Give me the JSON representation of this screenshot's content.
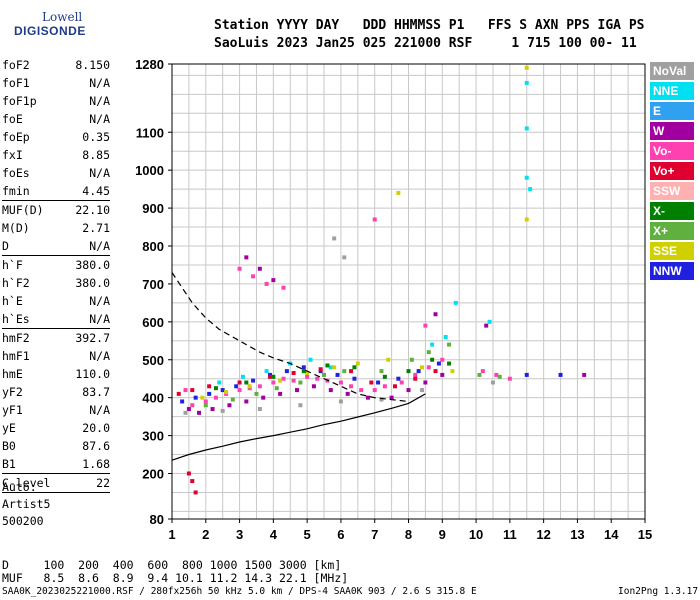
{
  "logo": {
    "line1": "Lowell",
    "line2": "DIGISONDE"
  },
  "header": {
    "row1": "Station YYYY DAY   DDD HHMMSS P1   FFS S AXN PPS IGA PS",
    "row2": "SaoLuis 2023 Jan25 025 221000 RSF     1 715 100 00- 11"
  },
  "params": [
    {
      "label": "foF2",
      "value": "8.150"
    },
    {
      "label": "foF1",
      "value": "N/A"
    },
    {
      "label": "foF1p",
      "value": "N/A"
    },
    {
      "label": "foE",
      "value": "N/A"
    },
    {
      "label": "foEp",
      "value": "0.35"
    },
    {
      "label": "fxI",
      "value": "8.85"
    },
    {
      "label": "foEs",
      "value": "N/A"
    },
    {
      "label": "fmin",
      "value": "4.45",
      "sep_after": true
    },
    {
      "label": "MUF(D)",
      "value": "22.10"
    },
    {
      "label": "M(D)",
      "value": "2.71"
    },
    {
      "label": "D",
      "value": "N/A",
      "sep_after": true
    },
    {
      "label": "h`F",
      "value": "380.0"
    },
    {
      "label": "h`F2",
      "value": "380.0"
    },
    {
      "label": "h`E",
      "value": "N/A"
    },
    {
      "label": "h`Es",
      "value": "N/A",
      "sep_after": true
    },
    {
      "label": "hmF2",
      "value": "392.7"
    },
    {
      "label": "hmF1",
      "value": "N/A"
    },
    {
      "label": "hmE",
      "value": "110.0"
    },
    {
      "label": "yF2",
      "value": "83.7"
    },
    {
      "label": "yF1",
      "value": "N/A"
    },
    {
      "label": "yE",
      "value": "20.0"
    },
    {
      "label": "B0",
      "value": "87.6"
    },
    {
      "label": "B1",
      "value": "1.68",
      "sep_after": true
    },
    {
      "label": "C-level",
      "value": "22",
      "sep_after": true
    }
  ],
  "auto": {
    "line1": "Auto:",
    "line2": "Artist5",
    "line3": "500200"
  },
  "legend": [
    {
      "label": "NoVal",
      "color": "#a0a0a0"
    },
    {
      "label": "NNE",
      "color": "#00e0f0"
    },
    {
      "label": "E",
      "color": "#30a0f0"
    },
    {
      "label": "W",
      "color": "#a000a0"
    },
    {
      "label": "Vo-",
      "color": "#ff40b0"
    },
    {
      "label": "Vo+",
      "color": "#e00030"
    },
    {
      "label": "SSW",
      "color": "#ffb0b0"
    },
    {
      "label": "X-",
      "color": "#008000"
    },
    {
      "label": "X+",
      "color": "#60b040"
    },
    {
      "label": "SSE",
      "color": "#d0d000"
    },
    {
      "label": "NNW",
      "color": "#2020e0"
    }
  ],
  "bottom": {
    "d_row": "D     100  200  400  600  800 1000 1500 3000 [km]",
    "muf_row": "MUF   8.5  8.6  8.9  9.4 10.1 11.2 14.3 22.1 [MHz]"
  },
  "footer": {
    "left": "SAA0K_2023025221000.RSF / 280fx256h 50 kHz 5.0 km / DPS-4 SAA0K 903 / 2.6 S 315.8 E",
    "right": "Ion2Png 1.3.17"
  },
  "chart_data": {
    "type": "scatter",
    "title": "",
    "xlabel": "",
    "ylabel": "",
    "x_ticks": [
      1,
      2,
      3,
      4,
      5,
      6,
      7,
      8,
      9,
      10,
      11,
      12,
      13,
      14,
      15
    ],
    "y_ticks": [
      80,
      200,
      300,
      400,
      500,
      600,
      700,
      800,
      900,
      1000,
      1100,
      1280
    ],
    "xlim": [
      1,
      15
    ],
    "ylim": [
      80,
      1280
    ],
    "grid": true,
    "legend_placement": "right",
    "series": [
      {
        "color": "#ff40b0",
        "points": [
          [
            1.4,
            420
          ],
          [
            1.6,
            380
          ],
          [
            2.0,
            390
          ],
          [
            2.3,
            400
          ],
          [
            2.6,
            410
          ],
          [
            3.0,
            420
          ],
          [
            3.3,
            425
          ],
          [
            3.6,
            430
          ],
          [
            4.0,
            440
          ],
          [
            4.3,
            450
          ],
          [
            4.6,
            445
          ],
          [
            5.0,
            455
          ],
          [
            5.3,
            450
          ],
          [
            5.6,
            445
          ],
          [
            6.0,
            440
          ],
          [
            6.3,
            430
          ],
          [
            6.6,
            420
          ],
          [
            7.0,
            420
          ],
          [
            7.3,
            430
          ],
          [
            7.8,
            440
          ],
          [
            8.2,
            460
          ],
          [
            8.6,
            480
          ],
          [
            9.0,
            500
          ],
          [
            10.2,
            470
          ],
          [
            10.6,
            460
          ],
          [
            11.0,
            450
          ],
          [
            3.0,
            740
          ],
          [
            3.4,
            720
          ],
          [
            3.8,
            700
          ],
          [
            4.3,
            690
          ],
          [
            7.0,
            870
          ],
          [
            8.5,
            590
          ]
        ]
      },
      {
        "color": "#a000a0",
        "points": [
          [
            1.5,
            370
          ],
          [
            1.8,
            360
          ],
          [
            2.2,
            370
          ],
          [
            2.7,
            380
          ],
          [
            3.2,
            390
          ],
          [
            3.7,
            400
          ],
          [
            4.2,
            410
          ],
          [
            4.7,
            420
          ],
          [
            5.2,
            430
          ],
          [
            5.7,
            420
          ],
          [
            6.2,
            410
          ],
          [
            6.8,
            400
          ],
          [
            7.5,
            400
          ],
          [
            8.0,
            420
          ],
          [
            8.5,
            440
          ],
          [
            9.0,
            460
          ],
          [
            3.2,
            770
          ],
          [
            3.6,
            740
          ],
          [
            4.0,
            710
          ],
          [
            8.8,
            620
          ],
          [
            10.3,
            590
          ],
          [
            13.2,
            460
          ]
        ]
      },
      {
        "color": "#2020e0",
        "points": [
          [
            1.3,
            390
          ],
          [
            1.7,
            400
          ],
          [
            2.1,
            410
          ],
          [
            2.5,
            420
          ],
          [
            2.9,
            430
          ],
          [
            3.4,
            445
          ],
          [
            3.9,
            460
          ],
          [
            4.4,
            470
          ],
          [
            4.9,
            480
          ],
          [
            5.4,
            470
          ],
          [
            5.9,
            460
          ],
          [
            6.4,
            450
          ],
          [
            7.1,
            440
          ],
          [
            7.7,
            450
          ],
          [
            8.3,
            470
          ],
          [
            8.9,
            490
          ],
          [
            11.5,
            460
          ],
          [
            12.5,
            460
          ]
        ]
      },
      {
        "color": "#00e0f0",
        "points": [
          [
            2.4,
            440
          ],
          [
            3.1,
            455
          ],
          [
            3.8,
            470
          ],
          [
            4.5,
            490
          ],
          [
            5.1,
            500
          ],
          [
            5.7,
            480
          ],
          [
            8.7,
            540
          ],
          [
            9.1,
            560
          ],
          [
            9.4,
            650
          ],
          [
            10.4,
            600
          ],
          [
            11.5,
            1230
          ],
          [
            11.5,
            1110
          ],
          [
            11.5,
            980
          ],
          [
            11.6,
            950
          ]
        ]
      },
      {
        "color": "#60b040",
        "points": [
          [
            2.0,
            380
          ],
          [
            2.8,
            395
          ],
          [
            3.5,
            410
          ],
          [
            4.1,
            425
          ],
          [
            4.8,
            440
          ],
          [
            5.5,
            460
          ],
          [
            6.1,
            470
          ],
          [
            7.2,
            470
          ],
          [
            8.1,
            500
          ],
          [
            8.6,
            520
          ],
          [
            9.2,
            540
          ],
          [
            10.1,
            460
          ],
          [
            10.7,
            455
          ]
        ]
      },
      {
        "color": "#d0d000",
        "points": [
          [
            1.9,
            400
          ],
          [
            2.6,
            415
          ],
          [
            3.3,
            430
          ],
          [
            4.2,
            445
          ],
          [
            5.0,
            465
          ],
          [
            5.8,
            480
          ],
          [
            6.5,
            490
          ],
          [
            7.4,
            500
          ],
          [
            8.4,
            480
          ],
          [
            9.3,
            470
          ],
          [
            11.5,
            1270
          ],
          [
            11.5,
            870
          ],
          [
            7.7,
            940
          ]
        ]
      },
      {
        "color": "#e00030",
        "points": [
          [
            1.2,
            410
          ],
          [
            1.6,
            420
          ],
          [
            2.1,
            430
          ],
          [
            3.0,
            440
          ],
          [
            3.9,
            455
          ],
          [
            4.6,
            465
          ],
          [
            5.4,
            475
          ],
          [
            6.3,
            470
          ],
          [
            6.9,
            440
          ],
          [
            7.6,
            430
          ],
          [
            8.2,
            450
          ],
          [
            8.8,
            470
          ],
          [
            1.5,
            200
          ],
          [
            1.6,
            180
          ],
          [
            1.7,
            150
          ]
        ]
      },
      {
        "color": "#008000",
        "points": [
          [
            2.3,
            425
          ],
          [
            3.2,
            440
          ],
          [
            4.0,
            455
          ],
          [
            4.9,
            470
          ],
          [
            5.6,
            485
          ],
          [
            6.4,
            480
          ],
          [
            7.3,
            455
          ],
          [
            8.0,
            470
          ],
          [
            8.7,
            500
          ],
          [
            9.2,
            490
          ]
        ]
      },
      {
        "color": "#a0a0a0",
        "points": [
          [
            1.4,
            360
          ],
          [
            2.5,
            365
          ],
          [
            3.6,
            370
          ],
          [
            4.8,
            380
          ],
          [
            6.0,
            390
          ],
          [
            7.2,
            395
          ],
          [
            8.4,
            420
          ],
          [
            10.5,
            440
          ],
          [
            5.8,
            820
          ],
          [
            6.1,
            770
          ]
        ]
      }
    ],
    "curves": [
      {
        "style": "solid",
        "x": [
          1.0,
          1.5,
          2.0,
          2.5,
          3.0,
          3.5,
          4.0,
          4.5,
          5.0,
          5.5,
          6.0,
          6.5,
          7.0,
          7.5,
          8.0,
          8.5
        ],
        "y": [
          235,
          250,
          262,
          272,
          283,
          292,
          300,
          309,
          318,
          329,
          338,
          349,
          360,
          372,
          385,
          410
        ]
      },
      {
        "style": "dashed",
        "x": [
          1.0,
          1.3,
          1.6,
          2.0,
          2.4,
          2.8,
          3.2,
          3.6,
          4.0,
          4.5,
          5.0,
          5.5,
          6.0,
          6.5,
          7.0,
          7.5,
          8.0
        ],
        "y": [
          730,
          690,
          650,
          610,
          580,
          560,
          540,
          520,
          505,
          490,
          470,
          450,
          430,
          410,
          400,
          395,
          390
        ]
      }
    ]
  }
}
